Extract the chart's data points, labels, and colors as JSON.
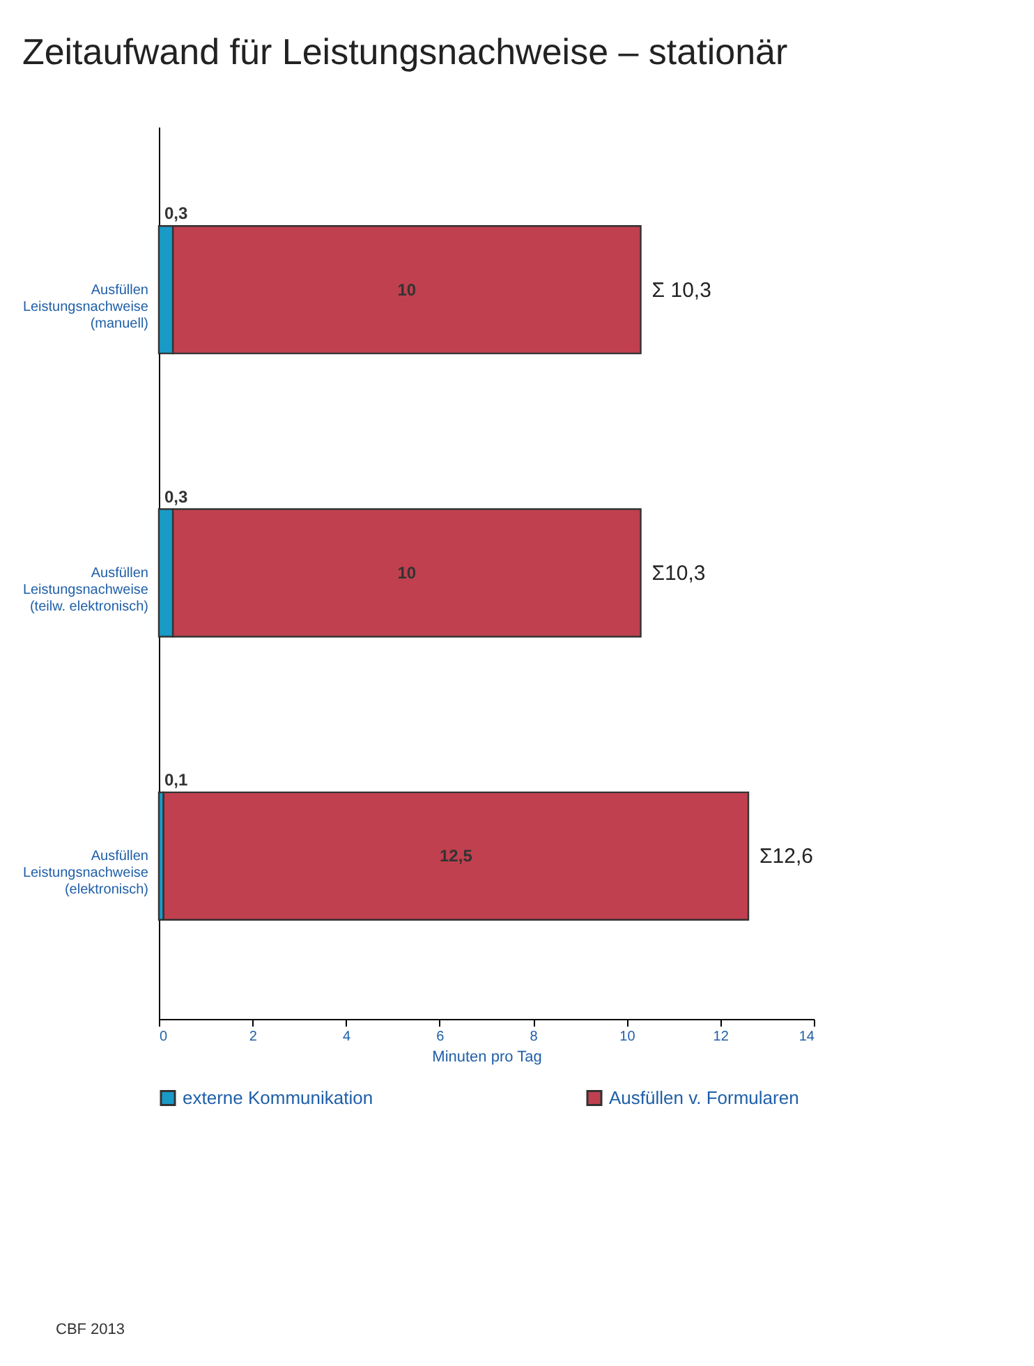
{
  "chart_data": {
    "type": "bar",
    "title": "Zeitaufwand für Leistungsnachweise – stationär",
    "orientation": "horizontal",
    "stacked": true,
    "categories": [
      "Ausfüllen Leistungsnachweise (manuell)",
      "Ausfüllen Leistungsnachweise (teilw. elektronisch)",
      "Ausfüllen Leistungsnachweise (elektronisch)"
    ],
    "series": [
      {
        "name": "externe Kommunikation",
        "color": "#1a9ac7",
        "values": [
          0.3,
          0.3,
          0.1
        ],
        "value_labels": [
          "0,3",
          "0,3",
          "0,1"
        ]
      },
      {
        "name": "Ausfüllen v. Formularen",
        "color": "#c0404f",
        "values": [
          10,
          10,
          12.5
        ],
        "value_labels": [
          "10",
          "10",
          "12,5"
        ]
      }
    ],
    "totals": [
      "Σ 10,3",
      "Σ10,3",
      "Σ12,6"
    ],
    "xlabel": "Minuten pro Tag",
    "xlim": [
      0,
      14
    ],
    "xticks": [
      0,
      2,
      4,
      6,
      8,
      10,
      12,
      14
    ],
    "grid": false,
    "legend": "bottom",
    "annotations": [
      "CBF 2013"
    ]
  }
}
